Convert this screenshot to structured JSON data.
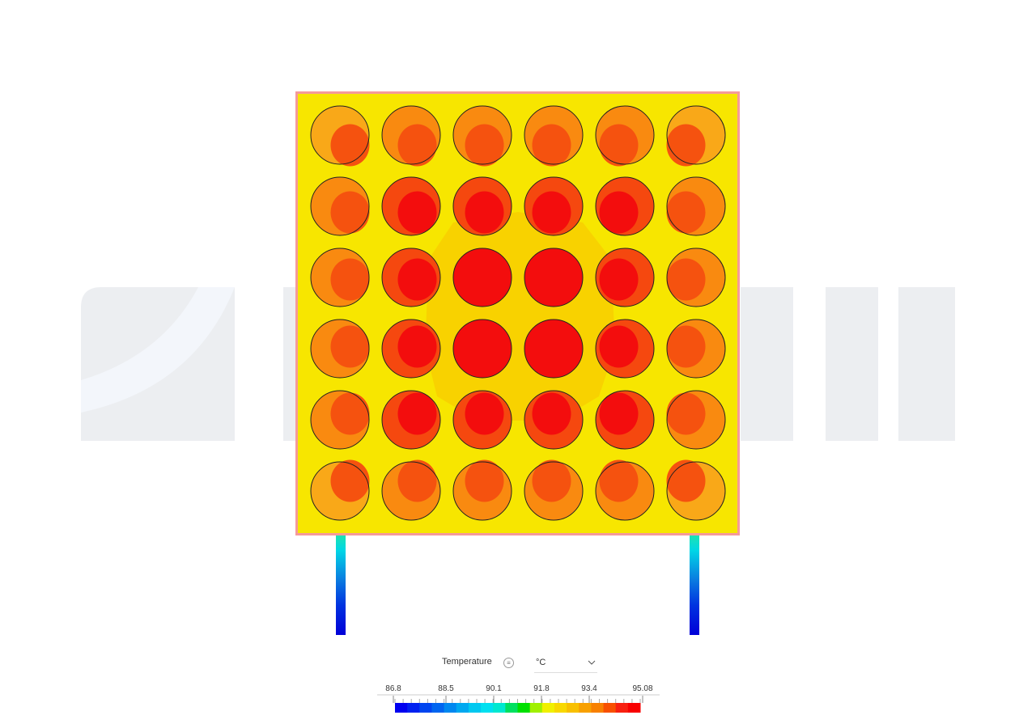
{
  "legend": {
    "title": "Temperature",
    "unit": "°C",
    "ticks": [
      "86.8",
      "88.5",
      "90.1",
      "91.8",
      "93.4",
      "95.08"
    ]
  }
}
